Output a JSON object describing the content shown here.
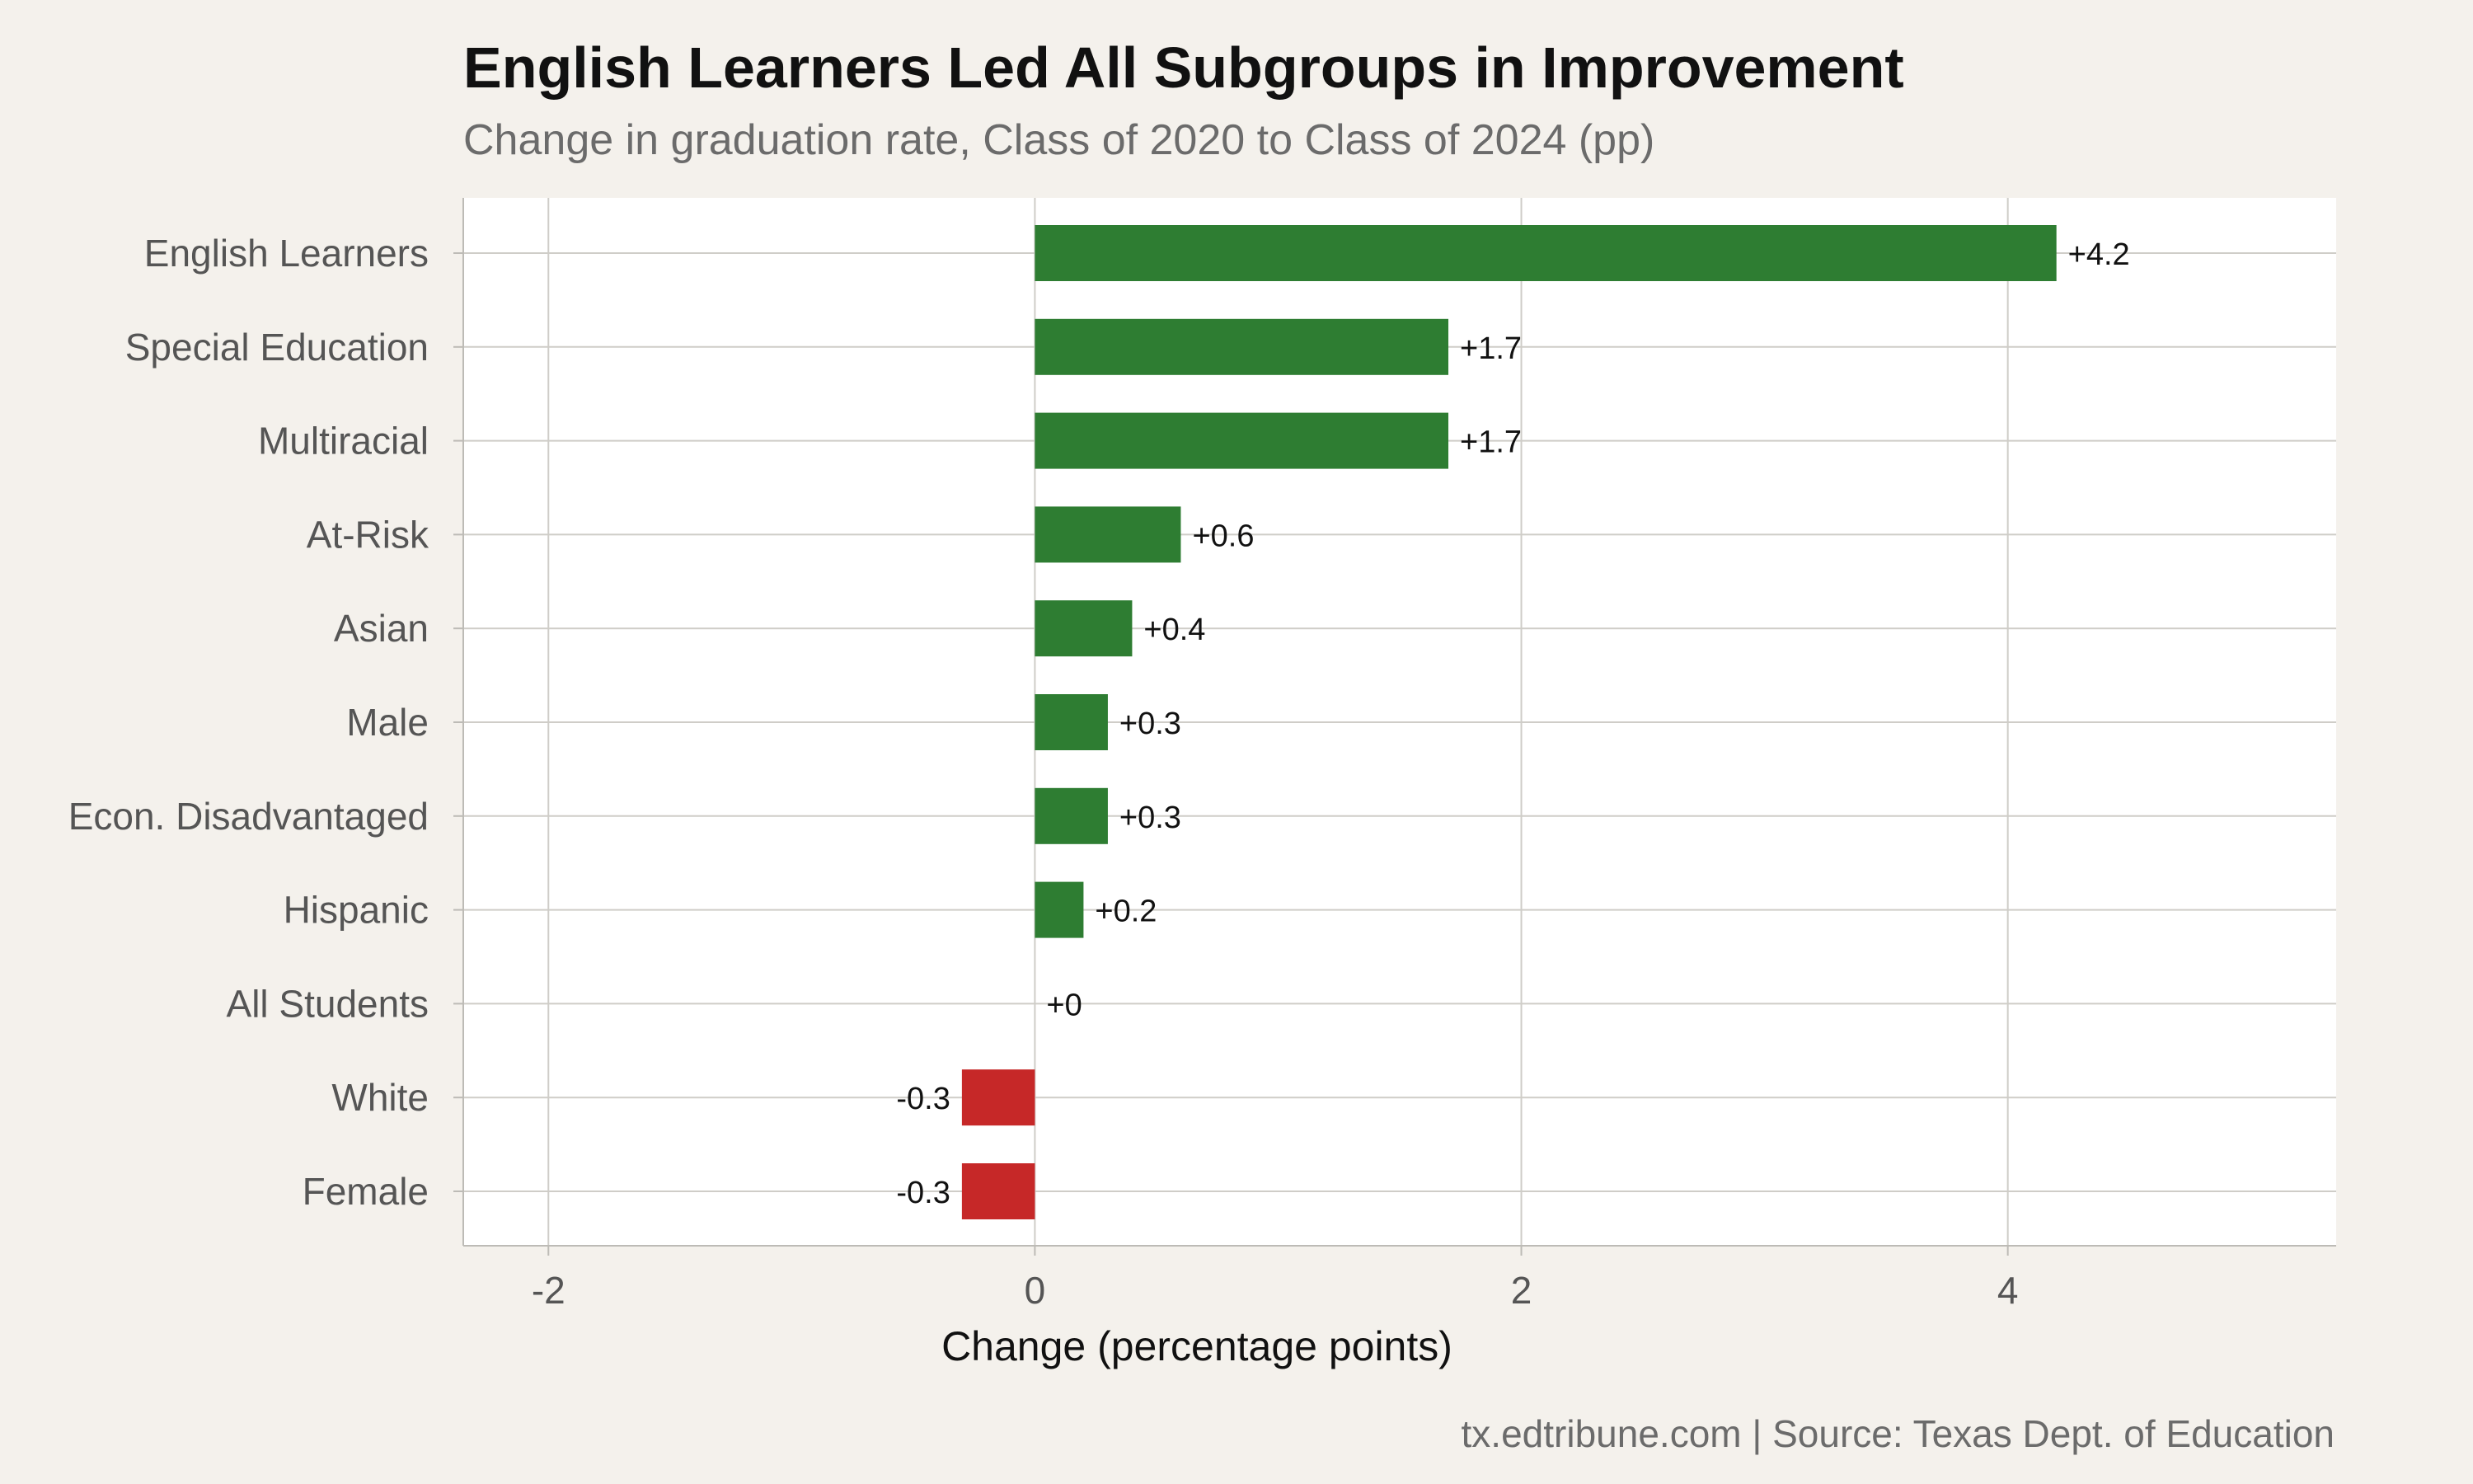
{
  "chart_data": {
    "type": "bar",
    "orientation": "horizontal",
    "title": "English Learners Led All Subgroups in Improvement",
    "subtitle": "Change in graduation rate, Class of 2020 to Class of 2024 (pp)",
    "xlabel": "Change (percentage points)",
    "ylabel": "",
    "categories": [
      "English Learners",
      "Special Education",
      "Multiracial",
      "At-Risk",
      "Asian",
      "Male",
      "Econ. Disadvantaged",
      "Hispanic",
      "All Students",
      "White",
      "Female"
    ],
    "values": [
      4.2,
      1.7,
      1.7,
      0.6,
      0.4,
      0.3,
      0.3,
      0.2,
      0,
      -0.3,
      -0.3
    ],
    "value_labels": [
      "+4.2",
      "+1.7",
      "+1.7",
      "+0.6",
      "+0.4",
      "+0.3",
      "+0.3",
      "+0.2",
      "+0",
      "-0.3",
      "-0.3"
    ],
    "xlim": [
      -2.35,
      5.35
    ],
    "xticks": [
      -2,
      0,
      2,
      4
    ],
    "xtick_labels": [
      "-2",
      "0",
      "2",
      "4"
    ],
    "grid": true,
    "colors": {
      "positive": "#2e7d32",
      "negative": "#c62828",
      "panel_background": "#ffffff",
      "page_background": "#f4f1ec",
      "gridline": "#cfcdc8",
      "axis_line": "#bdbbb6"
    },
    "caption": "tx.edtribune.com | Source: Texas Dept. of Education"
  }
}
